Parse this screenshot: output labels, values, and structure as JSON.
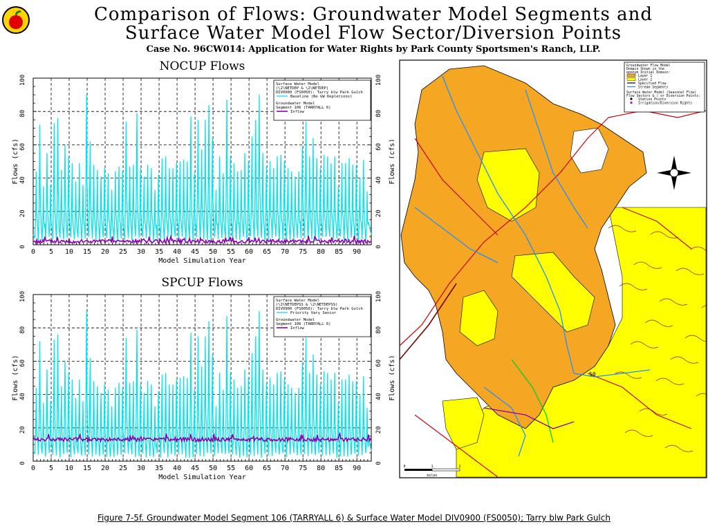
{
  "title_line1": "Comparison of Flows: Groundwater Model Segments and",
  "title_line2": "Surface Water Model Flow Sector/Diversion Points",
  "subtitle": "Case No. 96CW014: Application for Water Rights by Park County Sportsmen's Ranch, LLP.",
  "caption": "Figure 7-5f. Groundwater Model Segment 106 (TARRYALL 6) & Surface Water Model DIV0900 (FS0050); Tarry blw Park Gulch",
  "logo": "apple-logo",
  "colors": {
    "swm_line": "#00e5ee",
    "gw_line": "#8b00b0",
    "map_layer1": "#f5a623",
    "map_layer2": "#ffff00",
    "stream": "#1e90ff",
    "road": "#cc0000"
  },
  "chart_data": [
    {
      "type": "line",
      "title": "NOCUP Flows",
      "xlabel": "Model Simulation Year",
      "ylabel": "Flows (cfs)",
      "ylabel_right": "Flows (cfs)",
      "xlim": [
        0,
        94
      ],
      "ylim": [
        0,
        100
      ],
      "xticks": [
        0,
        5,
        10,
        15,
        20,
        25,
        30,
        35,
        40,
        45,
        50,
        55,
        60,
        65,
        70,
        75,
        80,
        85,
        90
      ],
      "yticks": [
        0,
        20,
        40,
        60,
        80,
        100
      ],
      "grid": true,
      "legend_position": "top-right",
      "legend": {
        "swm_head": [
          "Surface Water Model",
          "(\\2\\NETDEP & \\2\\NETDEP)",
          "DIV0900 (FS0050): Tarry blw Park Gulch"
        ],
        "swm_entry": "Baseline (No GW Depletions)",
        "gw_head": [
          "Groundwater Model",
          "Segment 106 (TARRYALL 6)"
        ],
        "gw_entry": "Inflow"
      },
      "series": [
        {
          "name": "Baseline (No GW Depletions)",
          "color": "#00e5ee",
          "peaks": [
            [
              1,
              44
            ],
            [
              2,
              72
            ],
            [
              3,
              35
            ],
            [
              4,
              55
            ],
            [
              5,
              36
            ],
            [
              6,
              73
            ],
            [
              7,
              76
            ],
            [
              8,
              45
            ],
            [
              9,
              60
            ],
            [
              10,
              53
            ],
            [
              11,
              49
            ],
            [
              12,
              38
            ],
            [
              13,
              49
            ],
            [
              14,
              36
            ],
            [
              15,
              90
            ],
            [
              16,
              62
            ],
            [
              17,
              48
            ],
            [
              18,
              45
            ],
            [
              19,
              41
            ],
            [
              20,
              46
            ],
            [
              21,
              43
            ],
            [
              22,
              33
            ],
            [
              23,
              44
            ],
            [
              24,
              47
            ],
            [
              25,
              44
            ],
            [
              26,
              74
            ],
            [
              27,
              47
            ],
            [
              28,
              48
            ],
            [
              29,
              79
            ],
            [
              30,
              46
            ],
            [
              31,
              41
            ],
            [
              32,
              48
            ],
            [
              33,
              46
            ],
            [
              34,
              33
            ],
            [
              35,
              42
            ],
            [
              36,
              52
            ],
            [
              37,
              53
            ],
            [
              38,
              46
            ],
            [
              39,
              46
            ],
            [
              40,
              49
            ],
            [
              41,
              50
            ],
            [
              42,
              51
            ],
            [
              43,
              50
            ],
            [
              44,
              77
            ],
            [
              45,
              43
            ],
            [
              46,
              75
            ],
            [
              47,
              57
            ],
            [
              48,
              75
            ],
            [
              49,
              84
            ],
            [
              50,
              64
            ],
            [
              51,
              33
            ],
            [
              52,
              53
            ],
            [
              53,
              43
            ],
            [
              54,
              87
            ],
            [
              55,
              53
            ],
            [
              56,
              49
            ],
            [
              57,
              44
            ],
            [
              58,
              45
            ],
            [
              59,
              55
            ],
            [
              60,
              50
            ],
            [
              61,
              65
            ],
            [
              62,
              75
            ],
            [
              63,
              90
            ],
            [
              64,
              55
            ],
            [
              65,
              47
            ],
            [
              66,
              50
            ],
            [
              67,
              46
            ],
            [
              68,
              53
            ],
            [
              69,
              54
            ],
            [
              70,
              50
            ],
            [
              71,
              46
            ],
            [
              72,
              44
            ],
            [
              73,
              41
            ],
            [
              74,
              44
            ],
            [
              75,
              59
            ],
            [
              76,
              74
            ],
            [
              77,
              53
            ],
            [
              78,
              64
            ],
            [
              79,
              52
            ],
            [
              80,
              46
            ],
            [
              81,
              54
            ],
            [
              82,
              53
            ],
            [
              83,
              49
            ],
            [
              84,
              53
            ],
            [
              85,
              35
            ],
            [
              86,
              49
            ],
            [
              87,
              49
            ],
            [
              88,
              52
            ],
            [
              89,
              48
            ],
            [
              90,
              48
            ],
            [
              91,
              40
            ],
            [
              92,
              51
            ],
            [
              93,
              32
            ]
          ],
          "base": 6
        },
        {
          "name": "Inflow",
          "color": "#8b00b0",
          "level": 2
        }
      ]
    },
    {
      "type": "line",
      "title": "SPCUP Flows",
      "xlabel": "Model Simulation Year",
      "ylabel": "Flows (cfs)",
      "ylabel_right": "Flows (cfs)",
      "xlim": [
        0,
        94
      ],
      "ylim": [
        0,
        100
      ],
      "xticks": [
        0,
        5,
        10,
        15,
        20,
        25,
        30,
        35,
        40,
        45,
        50,
        55,
        60,
        65,
        70,
        75,
        80,
        85,
        90
      ],
      "yticks": [
        0,
        20,
        40,
        60,
        80,
        100
      ],
      "grid": true,
      "legend_position": "top-right",
      "legend": {
        "swm_head": [
          "Surface Water Model",
          "(\\2\\NETDEPSS & \\2\\NETDEPSS)",
          "DIV0900 (FS0050): Tarry blw Park Gulch"
        ],
        "swm_entry": "Priority Vary Senior",
        "gw_head": [
          "Groundwater Model",
          "Segment 106 (TARRYALL 6)"
        ],
        "gw_entry": "Inflow"
      },
      "series": [
        {
          "name": "Priority Vary Senior",
          "color": "#00e5ee",
          "peaks": [
            [
              1,
              44
            ],
            [
              2,
              72
            ],
            [
              3,
              35
            ],
            [
              4,
              55
            ],
            [
              5,
              36
            ],
            [
              6,
              73
            ],
            [
              7,
              76
            ],
            [
              8,
              45
            ],
            [
              9,
              60
            ],
            [
              10,
              53
            ],
            [
              11,
              49
            ],
            [
              12,
              38
            ],
            [
              13,
              49
            ],
            [
              14,
              36
            ],
            [
              15,
              90
            ],
            [
              16,
              62
            ],
            [
              17,
              48
            ],
            [
              18,
              45
            ],
            [
              19,
              41
            ],
            [
              20,
              46
            ],
            [
              21,
              43
            ],
            [
              22,
              33
            ],
            [
              23,
              44
            ],
            [
              24,
              47
            ],
            [
              25,
              44
            ],
            [
              26,
              74
            ],
            [
              27,
              47
            ],
            [
              28,
              48
            ],
            [
              29,
              79
            ],
            [
              30,
              46
            ],
            [
              31,
              41
            ],
            [
              32,
              48
            ],
            [
              33,
              46
            ],
            [
              34,
              33
            ],
            [
              35,
              42
            ],
            [
              36,
              52
            ],
            [
              37,
              53
            ],
            [
              38,
              46
            ],
            [
              39,
              46
            ],
            [
              40,
              49
            ],
            [
              41,
              50
            ],
            [
              42,
              51
            ],
            [
              43,
              50
            ],
            [
              44,
              77
            ],
            [
              45,
              43
            ],
            [
              46,
              75
            ],
            [
              47,
              57
            ],
            [
              48,
              75
            ],
            [
              49,
              84
            ],
            [
              50,
              64
            ],
            [
              51,
              33
            ],
            [
              52,
              53
            ],
            [
              53,
              43
            ],
            [
              54,
              87
            ],
            [
              55,
              53
            ],
            [
              56,
              49
            ],
            [
              57,
              44
            ],
            [
              58,
              45
            ],
            [
              59,
              55
            ],
            [
              60,
              50
            ],
            [
              61,
              65
            ],
            [
              62,
              75
            ],
            [
              63,
              90
            ],
            [
              64,
              55
            ],
            [
              65,
              47
            ],
            [
              66,
              50
            ],
            [
              67,
              46
            ],
            [
              68,
              53
            ],
            [
              69,
              54
            ],
            [
              70,
              50
            ],
            [
              71,
              46
            ],
            [
              72,
              44
            ],
            [
              73,
              41
            ],
            [
              74,
              44
            ],
            [
              75,
              59
            ],
            [
              76,
              74
            ],
            [
              77,
              53
            ],
            [
              78,
              64
            ],
            [
              79,
              52
            ],
            [
              80,
              46
            ],
            [
              81,
              54
            ],
            [
              82,
              53
            ],
            [
              83,
              49
            ],
            [
              84,
              53
            ],
            [
              85,
              35
            ],
            [
              86,
              49
            ],
            [
              87,
              49
            ],
            [
              88,
              52
            ],
            [
              89,
              48
            ],
            [
              90,
              48
            ],
            [
              91,
              40
            ],
            [
              92,
              51
            ],
            [
              93,
              32
            ]
          ],
          "base": 6
        },
        {
          "name": "Inflow",
          "color": "#8b00b0",
          "level": 13
        }
      ]
    }
  ],
  "map": {
    "legend_title": [
      "Groundwater Flow Model",
      "Domain Shown in the",
      "eponym Initial Domain:"
    ],
    "layers": [
      "Layer 1",
      "Layer 2",
      "Specified Flow",
      "Stream Segments"
    ],
    "swm_head": [
      "Surface Water Model (Seasonal Flow)",
      "Flow Sectors & / or Diversion Points:"
    ],
    "swm_items": [
      "Station Points",
      "Irrigation/Diversion Rights"
    ],
    "scale_label": "miles",
    "scale_ticks": [
      "0",
      "1",
      "2"
    ],
    "point_label": "50"
  }
}
